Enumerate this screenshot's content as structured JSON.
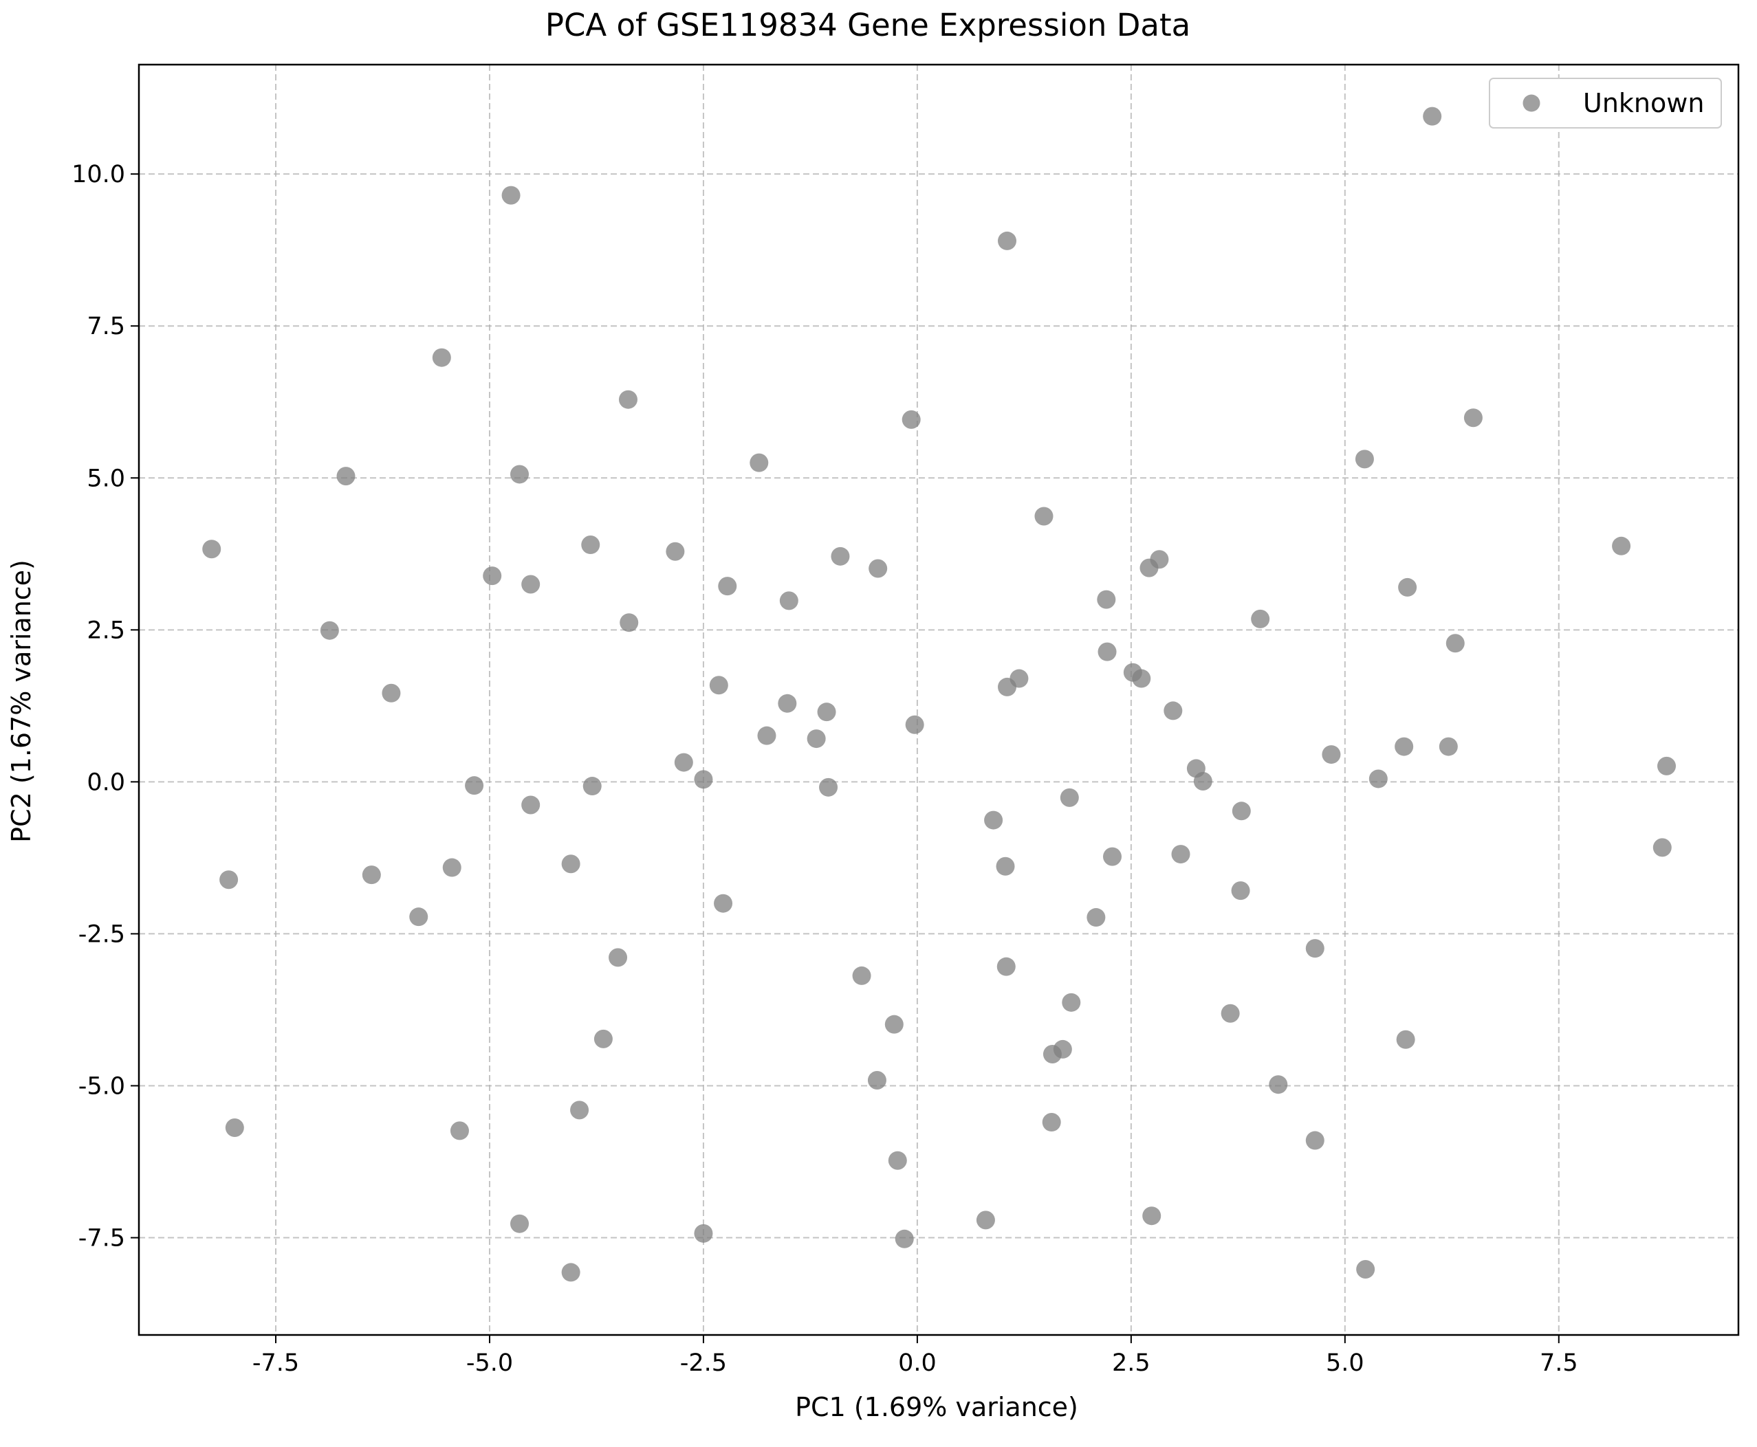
{
  "chart_data": {
    "type": "scatter",
    "title": "PCA of GSE119834 Gene Expression Data",
    "xlabel": "PC1 (1.69% variance)",
    "ylabel": "PC2 (1.67% variance)",
    "xlim": [
      -9.1,
      9.6
    ],
    "ylim": [
      -9.1,
      11.8
    ],
    "grid": true,
    "legend_position": "top-right",
    "x_ticks": [
      {
        "value": -7.5,
        "label": "-7.5"
      },
      {
        "value": -5.0,
        "label": "-5.0"
      },
      {
        "value": -2.5,
        "label": "-2.5"
      },
      {
        "value": 0.0,
        "label": "0.0"
      },
      {
        "value": 2.5,
        "label": "2.5"
      },
      {
        "value": 5.0,
        "label": "5.0"
      },
      {
        "value": 7.5,
        "label": "7.5"
      }
    ],
    "y_ticks": [
      {
        "value": -7.5,
        "label": "-7.5"
      },
      {
        "value": -5.0,
        "label": "-5.0"
      },
      {
        "value": -2.5,
        "label": "-2.5"
      },
      {
        "value": 0.0,
        "label": "0.0"
      },
      {
        "value": 2.5,
        "label": "2.5"
      },
      {
        "value": 5.0,
        "label": "5.0"
      },
      {
        "value": 7.5,
        "label": "7.5"
      },
      {
        "value": 10.0,
        "label": "10.0"
      }
    ],
    "series": [
      {
        "name": "Unknown",
        "color": "#808080",
        "points": [
          [
            -8.25,
            3.83
          ],
          [
            -8.05,
            -1.61
          ],
          [
            -7.98,
            -5.69
          ],
          [
            -6.87,
            2.49
          ],
          [
            -6.68,
            5.03
          ],
          [
            -6.38,
            -1.53
          ],
          [
            -6.15,
            1.46
          ],
          [
            -5.83,
            -2.22
          ],
          [
            -5.56,
            6.98
          ],
          [
            -5.44,
            -1.41
          ],
          [
            -5.35,
            -5.74
          ],
          [
            -5.18,
            -0.06
          ],
          [
            -4.97,
            3.39
          ],
          [
            -4.75,
            9.65
          ],
          [
            -4.65,
            5.06
          ],
          [
            -4.65,
            -7.27
          ],
          [
            -4.52,
            3.25
          ],
          [
            -4.52,
            -0.38
          ],
          [
            -4.05,
            -1.35
          ],
          [
            -4.05,
            -8.07
          ],
          [
            -3.95,
            -5.4
          ],
          [
            -3.82,
            3.9
          ],
          [
            -3.8,
            -0.07
          ],
          [
            -3.67,
            -4.23
          ],
          [
            -3.5,
            -2.89
          ],
          [
            -3.38,
            6.29
          ],
          [
            -3.37,
            2.62
          ],
          [
            -2.83,
            3.79
          ],
          [
            -2.73,
            0.32
          ],
          [
            -2.5,
            0.04
          ],
          [
            -2.5,
            -7.43
          ],
          [
            -2.32,
            1.59
          ],
          [
            -2.27,
            -2.0
          ],
          [
            -2.22,
            3.22
          ],
          [
            -1.85,
            5.25
          ],
          [
            -1.76,
            0.76
          ],
          [
            -1.52,
            1.29
          ],
          [
            -1.5,
            2.98
          ],
          [
            -1.18,
            0.71
          ],
          [
            -1.06,
            1.15
          ],
          [
            -1.04,
            -0.09
          ],
          [
            -0.9,
            3.71
          ],
          [
            -0.65,
            -3.19
          ],
          [
            -0.46,
            3.51
          ],
          [
            -0.47,
            -4.91
          ],
          [
            -0.27,
            -3.99
          ],
          [
            -0.23,
            -6.23
          ],
          [
            -0.15,
            -7.52
          ],
          [
            -0.07,
            5.96
          ],
          [
            -0.03,
            0.94
          ],
          [
            0.8,
            -7.21
          ],
          [
            0.89,
            -0.63
          ],
          [
            1.03,
            -1.39
          ],
          [
            1.04,
            -3.04
          ],
          [
            1.05,
            8.9
          ],
          [
            1.05,
            1.56
          ],
          [
            1.19,
            1.7
          ],
          [
            1.48,
            4.37
          ],
          [
            1.57,
            -5.6
          ],
          [
            1.58,
            -4.48
          ],
          [
            1.7,
            -4.4
          ],
          [
            1.78,
            -0.26
          ],
          [
            1.8,
            -3.63
          ],
          [
            2.09,
            -2.23
          ],
          [
            2.21,
            3.0
          ],
          [
            2.22,
            2.14
          ],
          [
            2.28,
            -1.23
          ],
          [
            2.52,
            1.8
          ],
          [
            2.62,
            1.7
          ],
          [
            2.71,
            3.52
          ],
          [
            2.74,
            -7.14
          ],
          [
            2.83,
            3.66
          ],
          [
            2.99,
            1.17
          ],
          [
            3.08,
            -1.19
          ],
          [
            3.26,
            0.22
          ],
          [
            3.34,
            0.01
          ],
          [
            3.66,
            -3.81
          ],
          [
            3.78,
            -1.79
          ],
          [
            3.79,
            -0.48
          ],
          [
            4.01,
            2.68
          ],
          [
            4.22,
            -4.98
          ],
          [
            4.65,
            -5.9
          ],
          [
            4.65,
            -2.74
          ],
          [
            4.84,
            0.45
          ],
          [
            5.23,
            5.31
          ],
          [
            5.24,
            -8.02
          ],
          [
            5.39,
            0.05
          ],
          [
            5.69,
            0.58
          ],
          [
            5.71,
            -4.24
          ],
          [
            5.73,
            3.2
          ],
          [
            6.02,
            10.95
          ],
          [
            6.21,
            0.58
          ],
          [
            6.29,
            2.28
          ],
          [
            6.5,
            5.99
          ],
          [
            8.23,
            3.88
          ],
          [
            8.71,
            -1.08
          ],
          [
            8.76,
            0.26
          ]
        ]
      }
    ]
  }
}
